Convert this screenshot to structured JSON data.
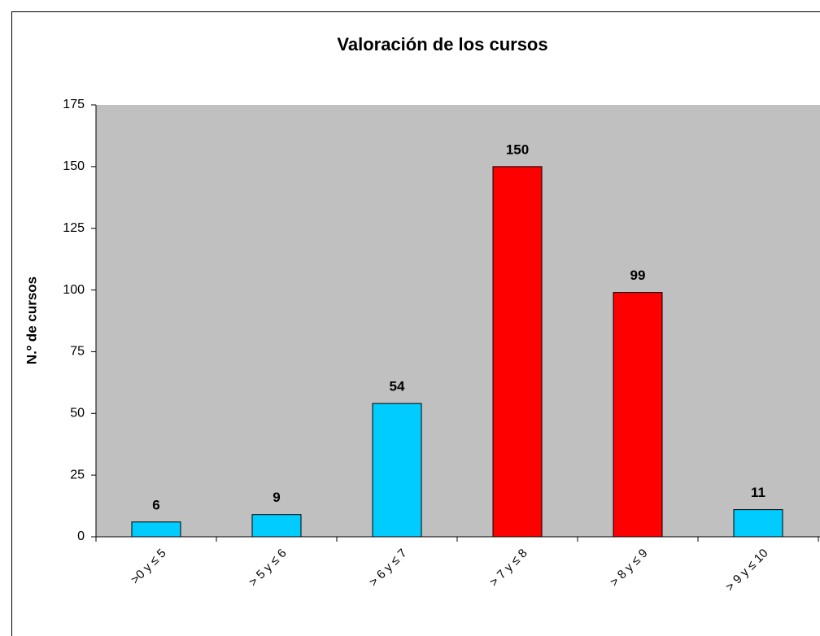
{
  "chart_data": {
    "type": "bar",
    "title": "Valoración de los cursos",
    "y_label": "N.º de cursos",
    "categories": [
      ">0 y ≤ 5",
      "> 5 y ≤ 6",
      "> 6 y ≤ 7",
      "> 7 y ≤ 8",
      "> 8 y ≤ 9",
      "> 9 y ≤ 10"
    ],
    "values": [
      6,
      9,
      54,
      150,
      99,
      11
    ],
    "colors": [
      "#00ccff",
      "#00ccff",
      "#00ccff",
      "#ff0000",
      "#ff0000",
      "#00ccff"
    ],
    "ylim": [
      0,
      175
    ],
    "yticks": [
      0,
      25,
      50,
      75,
      100,
      125,
      150,
      175
    ],
    "plot_background": "#c0c0c0"
  }
}
